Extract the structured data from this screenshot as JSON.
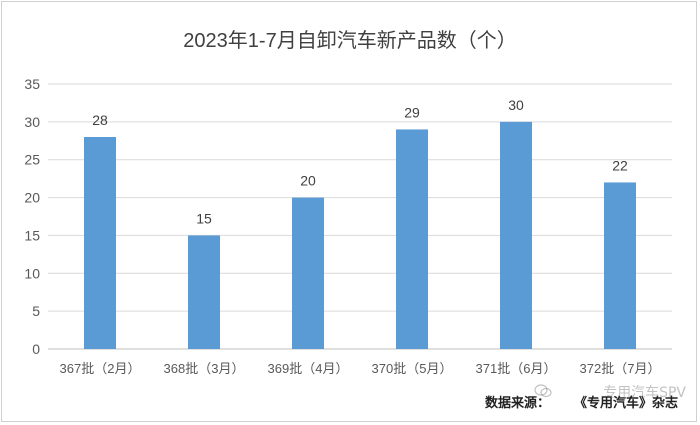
{
  "chart_data": {
    "type": "bar",
    "title": "2023年1-7月自卸汽车新产品数（个）",
    "categories": [
      "367批（2月）",
      "368批（3月）",
      "369批（4月）",
      "370批（5月）",
      "371批（6月）",
      "372批（7月）"
    ],
    "values": [
      28,
      15,
      20,
      29,
      30,
      22
    ],
    "ylim": [
      0,
      35
    ],
    "yticks": [
      0,
      5,
      10,
      15,
      20,
      25,
      30,
      35
    ],
    "grid": true,
    "bar_color": "#5b9bd5",
    "data_labels": true
  },
  "footer": {
    "source_label": "数据来源：",
    "source_name": "《专用汽车》杂志",
    "watermark": "专用汽车SPV"
  }
}
